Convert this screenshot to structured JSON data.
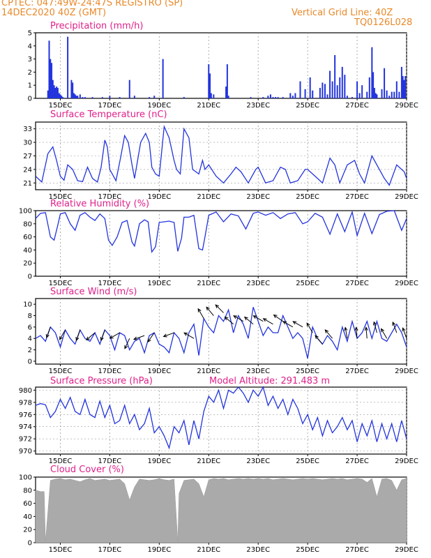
{
  "header": {
    "line1": "CPTEC:   047:49W-24:47S   REGISTRO (SP)",
    "line2": "14DEC2020 40Z (GMT)",
    "grid_note": "Vertical Grid Line: 40Z",
    "code": "TQ0126L028"
  },
  "colors": {
    "header": "#e8892a",
    "title": "#e0208a",
    "line": "#2233dd",
    "cloud": "#aaaaaa",
    "arrow": "#000000",
    "grid": "#999999"
  },
  "x_ticks": [
    "15DEC",
    "17DEC",
    "19DEC",
    "21DEC",
    "23DEC",
    "25DEC",
    "27DEC",
    "29DEC"
  ],
  "chart_data": [
    {
      "type": "bar",
      "title": "Precipitation (mm/h)",
      "ylim": [
        0,
        5
      ],
      "yticks": [
        "5",
        "4",
        "3",
        "2",
        "1",
        "0"
      ],
      "x_day_range": [
        14.0,
        29.0
      ],
      "x": [
        14.5,
        14.55,
        14.6,
        14.65,
        14.7,
        14.75,
        14.8,
        14.85,
        14.9,
        14.95,
        15.0,
        15.05,
        15.1,
        15.3,
        15.45,
        15.5,
        15.55,
        15.6,
        15.65,
        15.7,
        15.8,
        15.9,
        16.0,
        16.3,
        16.7,
        17.0,
        17.4,
        17.8,
        18.0,
        18.6,
        18.8,
        19.15,
        20.0,
        21.0,
        21.05,
        21.1,
        21.2,
        21.7,
        21.75,
        21.8,
        22.7,
        23.2,
        23.4,
        23.5,
        23.6,
        23.7,
        23.8,
        24.0,
        24.3,
        24.4,
        24.5,
        24.7,
        24.9,
        25.1,
        25.2,
        25.5,
        25.6,
        25.7,
        25.8,
        25.9,
        26.0,
        26.1,
        26.2,
        26.3,
        26.4,
        26.5,
        26.6,
        26.8,
        27.0,
        27.1,
        27.2,
        27.4,
        27.5,
        27.6,
        27.65,
        27.7,
        27.75,
        27.8,
        28.0,
        28.1,
        28.2,
        28.3,
        28.4,
        28.5,
        28.6,
        28.7,
        28.8,
        28.85,
        28.9,
        28.95
      ],
      "values": [
        0.6,
        4.4,
        3.0,
        2.7,
        1.4,
        1.0,
        0.8,
        0.9,
        0.8,
        0.4,
        0.3,
        0.2,
        0.1,
        4.7,
        1.4,
        1.2,
        0.4,
        0.3,
        0.2,
        0.2,
        0.3,
        0.1,
        0.1,
        0.1,
        0.1,
        0.2,
        0.1,
        1.4,
        0.2,
        0.1,
        0.2,
        3.0,
        0.1,
        2.6,
        1.9,
        0.4,
        0.3,
        0.9,
        2.6,
        0.2,
        0.1,
        0.1,
        0.2,
        0.3,
        0.1,
        0.1,
        0.1,
        0.1,
        0.4,
        0.2,
        0.4,
        1.3,
        0.7,
        1.6,
        0.6,
        0.8,
        1.2,
        1.1,
        0.3,
        2.1,
        1.3,
        3.3,
        1.0,
        1.6,
        2.4,
        1.8,
        0.2,
        0.1,
        1.3,
        0.4,
        1.0,
        0.5,
        1.6,
        3.9,
        2.0,
        0.8,
        0.4,
        0.3,
        0.7,
        2.3,
        0.6,
        0.2,
        0.5,
        0.5,
        1.3,
        0.5,
        2.4,
        1.7,
        1.4,
        1.7
      ]
    },
    {
      "type": "line",
      "title": "Surface Temperature (nC)",
      "ylim": [
        19.5,
        34.5
      ],
      "yticks": [
        "33",
        "30",
        "27",
        "24",
        "21"
      ],
      "ytick_values": [
        33,
        30,
        27,
        24,
        21
      ],
      "x_day_range": [
        14.0,
        29.0
      ],
      "x": [
        14.0,
        14.25,
        14.5,
        14.7,
        14.85,
        15.0,
        15.15,
        15.3,
        15.5,
        15.7,
        15.9,
        16.1,
        16.3,
        16.5,
        16.65,
        16.8,
        16.9,
        17.0,
        17.25,
        17.45,
        17.6,
        17.75,
        17.9,
        18.0,
        18.25,
        18.45,
        18.6,
        18.7,
        18.85,
        19.0,
        19.2,
        19.4,
        19.6,
        19.7,
        19.85,
        20.0,
        20.2,
        20.35,
        20.6,
        20.75,
        20.85,
        21.0,
        21.3,
        21.6,
        21.9,
        22.1,
        22.3,
        22.6,
        22.9,
        23.0,
        23.3,
        23.6,
        23.9,
        24.1,
        24.3,
        24.6,
        24.9,
        25.0,
        25.3,
        25.6,
        25.9,
        26.1,
        26.3,
        26.6,
        26.9,
        27.1,
        27.3,
        27.6,
        27.9,
        28.1,
        28.3,
        28.6,
        28.9,
        29.0
      ],
      "values": [
        22.5,
        21.2,
        27.5,
        29.0,
        26.0,
        22.5,
        21.6,
        25.0,
        24.0,
        21.5,
        21.3,
        24.5,
        22.0,
        21.2,
        24.5,
        30.5,
        29.0,
        24.0,
        21.5,
        27.0,
        31.5,
        30.0,
        25.0,
        22.0,
        30.0,
        32.0,
        30.0,
        24.5,
        23.0,
        22.5,
        33.5,
        31.0,
        26.0,
        24.0,
        23.0,
        33.0,
        31.0,
        24.0,
        23.0,
        26.0,
        24.0,
        25.0,
        22.5,
        21.0,
        23.0,
        24.5,
        23.5,
        21.0,
        24.0,
        24.5,
        21.0,
        21.5,
        24.5,
        24.0,
        21.0,
        21.5,
        24.0,
        24.0,
        22.5,
        21.0,
        26.5,
        25.0,
        21.0,
        25.0,
        26.0,
        23.0,
        21.0,
        27.0,
        24.0,
        22.0,
        20.5,
        25.0,
        23.5,
        22.0
      ]
    },
    {
      "type": "line",
      "title": "Relative Humidity (%)",
      "ylim": [
        0,
        100
      ],
      "yticks": [
        "100",
        "80",
        "60",
        "40",
        "20",
        "0"
      ],
      "x_day_range": [
        14.0,
        29.0
      ],
      "x": [
        14.0,
        14.2,
        14.4,
        14.6,
        14.75,
        14.9,
        15.0,
        15.2,
        15.4,
        15.6,
        15.8,
        16.0,
        16.2,
        16.4,
        16.6,
        16.8,
        16.95,
        17.1,
        17.3,
        17.5,
        17.7,
        17.9,
        18.0,
        18.2,
        18.4,
        18.55,
        18.7,
        18.85,
        19.0,
        19.2,
        19.4,
        19.6,
        19.75,
        19.9,
        20.0,
        20.2,
        20.4,
        20.6,
        20.75,
        20.85,
        21.0,
        21.3,
        21.6,
        21.9,
        22.2,
        22.5,
        22.8,
        23.0,
        23.3,
        23.6,
        23.9,
        24.2,
        24.5,
        24.8,
        25.0,
        25.3,
        25.6,
        25.9,
        26.2,
        26.5,
        26.8,
        27.0,
        27.3,
        27.6,
        27.9,
        28.2,
        28.5,
        28.8,
        29.0
      ],
      "values": [
        88,
        96,
        97,
        60,
        55,
        78,
        95,
        97,
        80,
        70,
        93,
        97,
        90,
        85,
        95,
        88,
        55,
        47,
        60,
        82,
        85,
        52,
        46,
        80,
        86,
        83,
        37,
        45,
        82,
        83,
        84,
        82,
        38,
        58,
        90,
        90,
        93,
        42,
        40,
        60,
        93,
        98,
        83,
        95,
        92,
        72,
        96,
        98,
        93,
        97,
        88,
        95,
        97,
        80,
        83,
        96,
        90,
        64,
        95,
        68,
        98,
        62,
        96,
        65,
        94,
        99,
        100,
        70,
        88
      ]
    },
    {
      "type": "line",
      "title": "Surface Wind (m/s)",
      "ylim": [
        -0.5,
        11
      ],
      "yticks": [
        "10",
        "8",
        "6",
        "4",
        "2",
        "0"
      ],
      "ytick_values": [
        10,
        8,
        6,
        4,
        2,
        0
      ],
      "x_day_range": [
        14.0,
        29.0
      ],
      "x": [
        14.0,
        14.2,
        14.4,
        14.6,
        14.8,
        15.0,
        15.2,
        15.4,
        15.6,
        15.8,
        16.0,
        16.2,
        16.4,
        16.6,
        16.8,
        17.0,
        17.2,
        17.4,
        17.6,
        17.8,
        18.0,
        18.2,
        18.4,
        18.6,
        18.8,
        19.0,
        19.2,
        19.4,
        19.6,
        19.8,
        20.0,
        20.2,
        20.4,
        20.6,
        20.8,
        21.0,
        21.2,
        21.4,
        21.6,
        21.8,
        22.0,
        22.2,
        22.4,
        22.6,
        22.8,
        23.0,
        23.2,
        23.4,
        23.6,
        23.8,
        24.0,
        24.2,
        24.4,
        24.6,
        24.8,
        25.0,
        25.2,
        25.4,
        25.6,
        25.8,
        26.0,
        26.2,
        26.4,
        26.6,
        26.8,
        27.0,
        27.2,
        27.4,
        27.6,
        27.8,
        28.0,
        28.2,
        28.4,
        28.6,
        28.8,
        29.0
      ],
      "values": [
        4,
        4.5,
        3.5,
        6,
        5,
        2.5,
        5.5,
        4,
        3,
        5.5,
        4,
        3.5,
        5,
        3,
        5.5,
        4.5,
        2,
        5,
        4.5,
        2,
        3.5,
        4,
        1.5,
        4.5,
        5,
        3,
        2.5,
        1.5,
        5,
        4,
        1.5,
        5,
        6.5,
        1,
        7.5,
        6,
        5,
        8,
        7,
        9,
        5,
        8,
        6.5,
        4,
        9.5,
        7,
        4.5,
        6,
        5,
        5,
        8,
        6,
        4,
        5,
        4,
        0.5,
        6,
        4,
        3,
        4.5,
        3.5,
        2,
        6,
        3.5,
        7,
        4,
        5,
        7,
        4,
        7,
        4,
        3.5,
        5,
        6.5,
        5,
        2.5
      ],
      "arrows": [
        {
          "day": 14.6,
          "dir_deg": 200,
          "speed": 6
        },
        {
          "day": 15.2,
          "dir_deg": 210,
          "speed": 5.5
        },
        {
          "day": 15.8,
          "dir_deg": 200,
          "speed": 5.5
        },
        {
          "day": 16.4,
          "dir_deg": 230,
          "speed": 5
        },
        {
          "day": 16.8,
          "dir_deg": 200,
          "speed": 5.5
        },
        {
          "day": 17.4,
          "dir_deg": 240,
          "speed": 5
        },
        {
          "day": 17.8,
          "dir_deg": 205,
          "speed": 4
        },
        {
          "day": 18.4,
          "dir_deg": 250,
          "speed": 4.5
        },
        {
          "day": 18.8,
          "dir_deg": 215,
          "speed": 5
        },
        {
          "day": 19.6,
          "dir_deg": 250,
          "speed": 5
        },
        {
          "day": 20.4,
          "dir_deg": 300,
          "speed": 4
        },
        {
          "day": 20.8,
          "dir_deg": 330,
          "speed": 7.5
        },
        {
          "day": 21.2,
          "dir_deg": 320,
          "speed": 8
        },
        {
          "day": 21.6,
          "dir_deg": 315,
          "speed": 8.5
        },
        {
          "day": 22.0,
          "dir_deg": 310,
          "speed": 6.5
        },
        {
          "day": 22.4,
          "dir_deg": 300,
          "speed": 7
        },
        {
          "day": 22.8,
          "dir_deg": 310,
          "speed": 6.5
        },
        {
          "day": 23.2,
          "dir_deg": 300,
          "speed": 7
        },
        {
          "day": 23.6,
          "dir_deg": 300,
          "speed": 6.5
        },
        {
          "day": 24.0,
          "dir_deg": 305,
          "speed": 7
        },
        {
          "day": 24.4,
          "dir_deg": 300,
          "speed": 6
        },
        {
          "day": 24.8,
          "dir_deg": 300,
          "speed": 6
        },
        {
          "day": 25.2,
          "dir_deg": 330,
          "speed": 5
        },
        {
          "day": 25.6,
          "dir_deg": 320,
          "speed": 3
        },
        {
          "day": 26.0,
          "dir_deg": 320,
          "speed": 4
        },
        {
          "day": 26.6,
          "dir_deg": 350,
          "speed": 4
        },
        {
          "day": 27.0,
          "dir_deg": 355,
          "speed": 4
        },
        {
          "day": 27.4,
          "dir_deg": 355,
          "speed": 4
        },
        {
          "day": 27.8,
          "dir_deg": 345,
          "speed": 5
        },
        {
          "day": 28.2,
          "dir_deg": 330,
          "speed": 4
        },
        {
          "day": 28.6,
          "dir_deg": 340,
          "speed": 5
        },
        {
          "day": 29.0,
          "dir_deg": 340,
          "speed": 4
        }
      ]
    },
    {
      "type": "line",
      "title": "Surface Pressure (hPa)",
      "annotation": "Model Altitude: 291.483 m",
      "ylim": [
        969.5,
        980.5
      ],
      "yticks": [
        "980",
        "978",
        "976",
        "974",
        "972",
        "970"
      ],
      "ytick_values": [
        980,
        978,
        976,
        974,
        972,
        970
      ],
      "x_day_range": [
        14.0,
        29.0
      ],
      "x": [
        14.0,
        14.2,
        14.4,
        14.6,
        14.8,
        15.0,
        15.2,
        15.4,
        15.6,
        15.8,
        16.0,
        16.2,
        16.4,
        16.6,
        16.8,
        17.0,
        17.2,
        17.4,
        17.6,
        17.8,
        18.0,
        18.2,
        18.4,
        18.6,
        18.8,
        19.0,
        19.2,
        19.4,
        19.6,
        19.8,
        20.0,
        20.2,
        20.4,
        20.6,
        20.8,
        21.0,
        21.2,
        21.4,
        21.6,
        21.8,
        22.0,
        22.2,
        22.4,
        22.6,
        22.8,
        23.0,
        23.2,
        23.4,
        23.6,
        23.8,
        24.0,
        24.2,
        24.4,
        24.6,
        24.8,
        25.0,
        25.2,
        25.4,
        25.6,
        25.8,
        26.0,
        26.2,
        26.4,
        26.6,
        26.8,
        27.0,
        27.2,
        27.4,
        27.6,
        27.8,
        28.0,
        28.2,
        28.4,
        28.6,
        28.8,
        29.0
      ],
      "values": [
        977.5,
        977.8,
        977.6,
        975.5,
        976.5,
        978.5,
        977,
        978.8,
        976.5,
        976,
        978.5,
        976,
        975.5,
        978.2,
        975.5,
        977.5,
        974.5,
        975,
        977.5,
        974.5,
        976,
        973.5,
        974.5,
        977,
        973,
        974,
        972.5,
        970.5,
        974,
        973,
        975,
        971,
        975,
        972,
        976.5,
        979,
        978,
        980,
        977,
        980,
        979.5,
        980.5,
        979.5,
        978,
        980,
        979,
        980.5,
        977.5,
        979,
        977,
        978.5,
        976,
        978.5,
        977,
        974.5,
        976,
        973.5,
        975.5,
        972.5,
        975,
        973,
        974,
        975.5,
        973.5,
        975,
        971.5,
        974.5,
        972.5,
        975,
        971.5,
        974.5,
        972,
        974.5,
        971.5,
        975,
        972
      ]
    },
    {
      "type": "area",
      "title": "Cloud Cover (%)",
      "ylim": [
        0,
        100
      ],
      "yticks": [
        "100",
        "80",
        "60",
        "40",
        "20",
        "0"
      ],
      "x_day_range": [
        14.0,
        29.0
      ],
      "x": [
        14.0,
        14.2,
        14.35,
        14.4,
        14.6,
        14.8,
        15.0,
        15.2,
        15.4,
        15.6,
        15.8,
        16.0,
        16.2,
        16.4,
        16.6,
        16.8,
        17.0,
        17.2,
        17.4,
        17.6,
        17.8,
        18.0,
        18.2,
        18.4,
        18.6,
        18.8,
        19.0,
        19.2,
        19.4,
        19.6,
        19.75,
        19.8,
        20.0,
        20.2,
        20.4,
        20.6,
        20.8,
        21.0,
        21.2,
        21.4,
        21.6,
        21.8,
        22.0,
        22.2,
        22.4,
        22.6,
        22.8,
        23.0,
        23.2,
        23.4,
        23.6,
        23.8,
        24.0,
        24.2,
        24.4,
        24.6,
        24.8,
        25.0,
        25.2,
        25.4,
        25.6,
        25.8,
        26.0,
        26.2,
        26.4,
        26.6,
        26.8,
        27.0,
        27.2,
        27.4,
        27.6,
        27.8,
        28.0,
        28.2,
        28.4,
        28.6,
        28.8,
        29.0
      ],
      "values": [
        80,
        78,
        78,
        2,
        95,
        97,
        98,
        96,
        97,
        95,
        93,
        96,
        98,
        95,
        96,
        97,
        95,
        96,
        97,
        90,
        65,
        85,
        97,
        96,
        95,
        96,
        98,
        96,
        95,
        97,
        2,
        75,
        95,
        96,
        97,
        90,
        70,
        96,
        98,
        97,
        98,
        96,
        97,
        98,
        97,
        98,
        97,
        98,
        97,
        98,
        96,
        97,
        98,
        97,
        96,
        97,
        98,
        97,
        98,
        97,
        96,
        97,
        98,
        97,
        98,
        96,
        97,
        98,
        97,
        92,
        98,
        70,
        97,
        98,
        95,
        80,
        96,
        98
      ]
    }
  ]
}
